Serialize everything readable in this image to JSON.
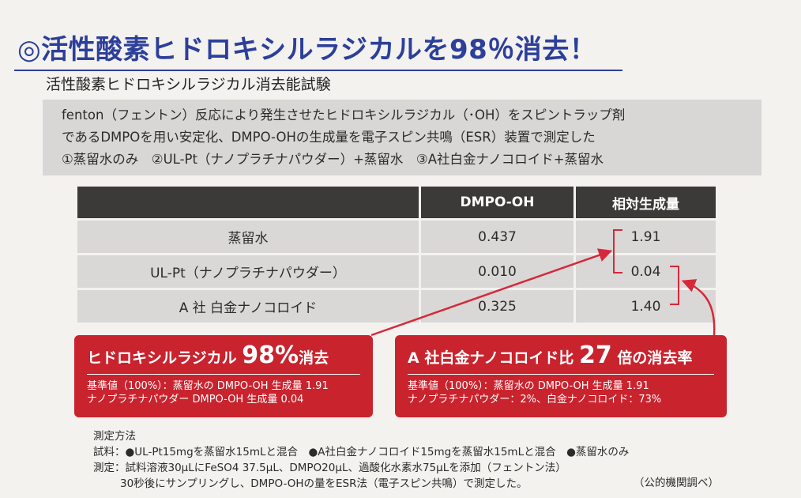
{
  "headline": "◎活性酸素ヒドロキシルラジカルを98％消去！",
  "subtitle": "活性酸素ヒドロキシルラジカル消去能試験",
  "description": [
    "fenton（フェントン）反応により発生させたヒドロキシルラジカル（･OH）をスピントラップ剤",
    "であるDMPOを用い安定化、DMPO-OHの生成量を電子スピン共鳴（ESR）装置で測定した",
    "①蒸留水のみ　②UL-Pt（ナノプラチナパウダー）+蒸留水　③A社白金ナノコロイド+蒸留水"
  ],
  "table": {
    "headers": [
      "",
      "DMPO-OH",
      "相対生成量"
    ],
    "rows": [
      [
        "蒸留水",
        "0.437",
        "1.91"
      ],
      [
        "UL-Pt（ナノプラチナパウダー）",
        "0.010",
        "0.04"
      ],
      [
        "A 社 白金ナノコロイド",
        "0.325",
        "1.40"
      ]
    ]
  },
  "callouts": [
    {
      "title_prefix": "ヒドロキシルラジカル",
      "title_big": "98%",
      "title_suffix": "消去",
      "notes": [
        "基準値（100%）：蒸留水の DMPO-OH 生成量 1.91",
        "ナノプラチナパウダー DMPO-OH 生成量 0.04"
      ]
    },
    {
      "title_prefix": "A 社白金ナノコロイド比",
      "title_big": "27",
      "title_suffix": "倍の消去率",
      "notes": [
        "基準値（100%）：蒸留水の DMPO-OH 生成量 1.91",
        "ナノプラチナパウダー：2%、白金ナノコロイド：73%"
      ]
    }
  ],
  "method": {
    "heading": "測定方法",
    "lines": [
      "試料：●UL-Pt15mgを蒸留水15mLと混合　●A社白金ナノコロイド15mgを蒸留水15mLと混合　●蒸留水のみ",
      "測定：試料溶液30μLにFeSO4 37.5μL、DMPO20μL、過酸化水素水75μLを添加（フェントン法）",
      "30秒後にサンプリングし、DMPO-OHの量をESR法（電子スピン共鳴）で測定した。"
    ],
    "source": "（公的機関調べ）"
  },
  "colors": {
    "headline": "#2c3f9a",
    "accent": "#c9232e",
    "table_header": "#3b3a39"
  }
}
